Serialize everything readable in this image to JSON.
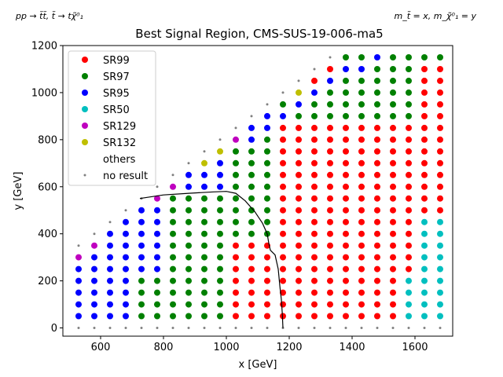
{
  "chart_data": {
    "type": "scatter",
    "title": "Best Signal Region, CMS-SUS-19-006-ma5",
    "corner_left": "pp → t̃t̃, t̃ → tχ̃⁰₁",
    "corner_right": "m_t̃ = x, m_χ̃⁰₁ = y",
    "xlabel": "x [GeV]",
    "ylabel": "y [GeV]",
    "xlim": [
      480,
      1720
    ],
    "ylim": [
      -35,
      1200
    ],
    "xticks": [
      600,
      800,
      1000,
      1200,
      1400,
      1600
    ],
    "yticks": [
      0,
      200,
      400,
      600,
      800,
      1000,
      1200
    ],
    "grid": false,
    "legend_position": "top-left",
    "series": [
      {
        "name": "SR99",
        "color": "#ff0000"
      },
      {
        "name": "SR97",
        "color": "#008000"
      },
      {
        "name": "SR95",
        "color": "#0000ff"
      },
      {
        "name": "SR50",
        "color": "#00bfbf"
      },
      {
        "name": "SR129",
        "color": "#bf00bf"
      },
      {
        "name": "SR132",
        "color": "#bfbf00"
      },
      {
        "name": "others",
        "color": "#ffffff"
      },
      {
        "name": "no result",
        "color": "#808080"
      }
    ],
    "grid_points": {
      "x_start": 530,
      "x_step": 50,
      "x_count": 24,
      "y_start": 0,
      "y_step": 50,
      "y_max_rule": "y <= x - 175, top point of each column grey"
    },
    "region_rules": [
      {
        "series": "no result",
        "where": "y = 0 or y = top of column"
      },
      {
        "series": "SR95",
        "where": "x <= 680"
      },
      {
        "series": "SR97",
        "where": "680 < x <= 780 and y <= 200"
      },
      {
        "series": "SR95",
        "where": "680 < x <= 780 and y > 200"
      },
      {
        "series": "SR97",
        "where": "780 < x <= 1000 and y <= 550"
      },
      {
        "series": "SR95",
        "where": "780 < x <= 1000 and y > 550"
      },
      {
        "series": "SR99",
        "where": "1000 < x <= 1130 and y <= 350"
      },
      {
        "series": "SR97",
        "where": "1000 < x <= 1130 and y > 350"
      },
      {
        "series": "SR99",
        "where": "1130 < x <= 1580 and y <= 850"
      },
      {
        "series": "SR97",
        "where": "1130 < x <= 1580 and y > 850"
      },
      {
        "series": "SR50",
        "where": "x >= 1630 and y <= 450"
      },
      {
        "series": "SR99",
        "where": "x >= 1630 and y > 450"
      }
    ],
    "point_overrides": [
      {
        "x": 530,
        "y": 300,
        "series": "SR129"
      },
      {
        "x": 580,
        "y": 350,
        "series": "SR129"
      },
      {
        "x": 780,
        "y": 550,
        "series": "SR129"
      },
      {
        "x": 830,
        "y": 600,
        "series": "SR129"
      },
      {
        "x": 930,
        "y": 700,
        "series": "SR132"
      },
      {
        "x": 980,
        "y": 750,
        "series": "SR132"
      },
      {
        "x": 1030,
        "y": 800,
        "series": "SR129"
      },
      {
        "x": 1230,
        "y": 1000,
        "series": "SR132"
      },
      {
        "x": 1280,
        "y": 1050,
        "series": "SR99"
      },
      {
        "x": 1330,
        "y": 1100,
        "series": "SR99"
      },
      {
        "x": 1480,
        "y": 1150,
        "series": "SR95"
      },
      {
        "x": 1580,
        "y": 200,
        "series": "SR50"
      },
      {
        "x": 1580,
        "y": 150,
        "series": "SR50"
      },
      {
        "x": 1580,
        "y": 100,
        "series": "SR50"
      },
      {
        "x": 1580,
        "y": 50,
        "series": "SR50"
      },
      {
        "x": 1180,
        "y": 900,
        "series": "SR95"
      },
      {
        "x": 1230,
        "y": 950,
        "series": "SR95"
      },
      {
        "x": 1280,
        "y": 1000,
        "series": "SR95"
      },
      {
        "x": 1330,
        "y": 1050,
        "series": "SR95"
      },
      {
        "x": 1380,
        "y": 1100,
        "series": "SR95"
      },
      {
        "x": 1430,
        "y": 1100,
        "series": "SR95"
      },
      {
        "x": 1080,
        "y": 800,
        "series": "SR95"
      },
      {
        "x": 1130,
        "y": 850,
        "series": "SR95"
      },
      {
        "x": 1130,
        "y": 900,
        "series": "SR95"
      },
      {
        "x": 1080,
        "y": 850,
        "series": "SR95"
      }
    ],
    "exclusion_contour": [
      [
        725,
        550
      ],
      [
        800,
        565
      ],
      [
        880,
        572
      ],
      [
        960,
        578
      ],
      [
        1000,
        580
      ],
      [
        1030,
        572
      ],
      [
        1060,
        540
      ],
      [
        1090,
        495
      ],
      [
        1115,
        445
      ],
      [
        1130,
        400
      ],
      [
        1135,
        360
      ],
      [
        1140,
        330
      ],
      [
        1155,
        310
      ],
      [
        1165,
        250
      ],
      [
        1170,
        180
      ],
      [
        1175,
        120
      ],
      [
        1178,
        60
      ],
      [
        1180,
        0
      ]
    ]
  }
}
